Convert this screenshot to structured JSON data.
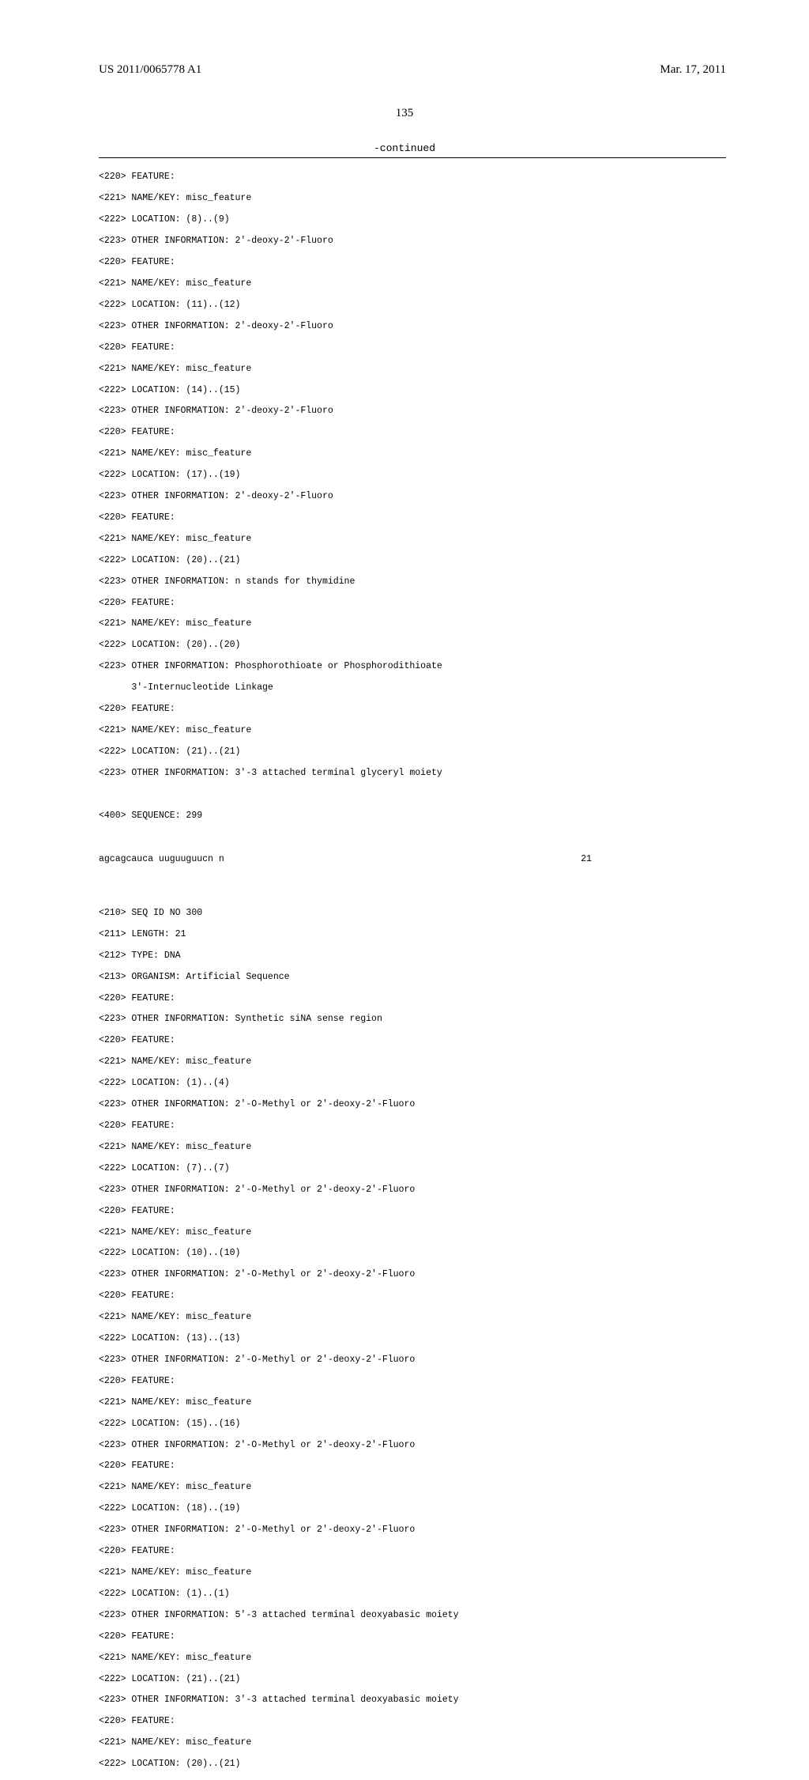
{
  "header": {
    "docNumber": "US 2011/0065778 A1",
    "date": "Mar. 17, 2011"
  },
  "pageNumber": "135",
  "continuedLabel": "-continued",
  "seq299": {
    "lines": [
      "<220> FEATURE:",
      "<221> NAME/KEY: misc_feature",
      "<222> LOCATION: (8)..(9)",
      "<223> OTHER INFORMATION: 2'-deoxy-2'-Fluoro",
      "<220> FEATURE:",
      "<221> NAME/KEY: misc_feature",
      "<222> LOCATION: (11)..(12)",
      "<223> OTHER INFORMATION: 2'-deoxy-2'-Fluoro",
      "<220> FEATURE:",
      "<221> NAME/KEY: misc_feature",
      "<222> LOCATION: (14)..(15)",
      "<223> OTHER INFORMATION: 2'-deoxy-2'-Fluoro",
      "<220> FEATURE:",
      "<221> NAME/KEY: misc_feature",
      "<222> LOCATION: (17)..(19)",
      "<223> OTHER INFORMATION: 2'-deoxy-2'-Fluoro",
      "<220> FEATURE:",
      "<221> NAME/KEY: misc_feature",
      "<222> LOCATION: (20)..(21)",
      "<223> OTHER INFORMATION: n stands for thymidine",
      "<220> FEATURE:",
      "<221> NAME/KEY: misc_feature",
      "<222> LOCATION: (20)..(20)",
      "<223> OTHER INFORMATION: Phosphorothioate or Phosphorodithioate",
      "      3'-Internucleotide Linkage",
      "<220> FEATURE:",
      "<221> NAME/KEY: misc_feature",
      "<222> LOCATION: (21)..(21)",
      "<223> OTHER INFORMATION: 3'-3 attached terminal glyceryl moiety"
    ],
    "sequenceLabel": "<400> SEQUENCE: 299",
    "sequence": "agcagcauca uuguuguucn n",
    "seqLength": "21"
  },
  "seq300": {
    "lines": [
      "<210> SEQ ID NO 300",
      "<211> LENGTH: 21",
      "<212> TYPE: DNA",
      "<213> ORGANISM: Artificial Sequence",
      "<220> FEATURE:",
      "<223> OTHER INFORMATION: Synthetic siNA sense region",
      "<220> FEATURE:",
      "<221> NAME/KEY: misc_feature",
      "<222> LOCATION: (1)..(4)",
      "<223> OTHER INFORMATION: 2'-O-Methyl or 2'-deoxy-2'-Fluoro",
      "<220> FEATURE:",
      "<221> NAME/KEY: misc_feature",
      "<222> LOCATION: (7)..(7)",
      "<223> OTHER INFORMATION: 2'-O-Methyl or 2'-deoxy-2'-Fluoro",
      "<220> FEATURE:",
      "<221> NAME/KEY: misc_feature",
      "<222> LOCATION: (10)..(10)",
      "<223> OTHER INFORMATION: 2'-O-Methyl or 2'-deoxy-2'-Fluoro",
      "<220> FEATURE:",
      "<221> NAME/KEY: misc_feature",
      "<222> LOCATION: (13)..(13)",
      "<223> OTHER INFORMATION: 2'-O-Methyl or 2'-deoxy-2'-Fluoro",
      "<220> FEATURE:",
      "<221> NAME/KEY: misc_feature",
      "<222> LOCATION: (15)..(16)",
      "<223> OTHER INFORMATION: 2'-O-Methyl or 2'-deoxy-2'-Fluoro",
      "<220> FEATURE:",
      "<221> NAME/KEY: misc_feature",
      "<222> LOCATION: (18)..(19)",
      "<223> OTHER INFORMATION: 2'-O-Methyl or 2'-deoxy-2'-Fluoro",
      "<220> FEATURE:",
      "<221> NAME/KEY: misc_feature",
      "<222> LOCATION: (1)..(1)",
      "<223> OTHER INFORMATION: 5'-3 attached terminal deoxyabasic moiety",
      "<220> FEATURE:",
      "<221> NAME/KEY: misc_feature",
      "<222> LOCATION: (21)..(21)",
      "<223> OTHER INFORMATION: 3'-3 attached terminal deoxyabasic moiety",
      "<220> FEATURE:",
      "<221> NAME/KEY: misc_feature",
      "<222> LOCATION: (20)..(21)"
    ]
  }
}
